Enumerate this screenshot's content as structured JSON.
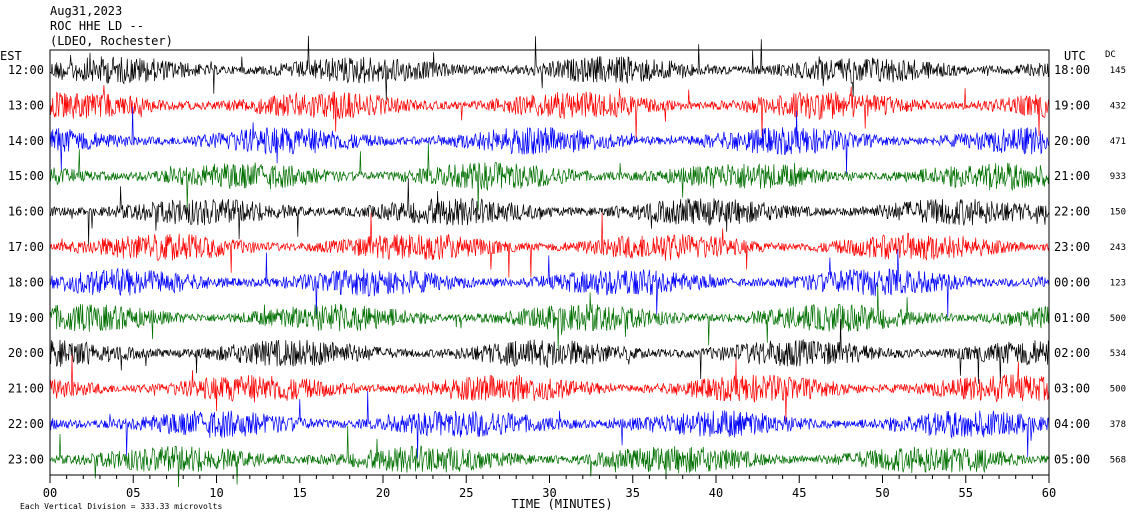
{
  "header": {
    "date": "Aug31,2023",
    "station": "ROC HHE LD --",
    "network": "(LDEO, Rochester)"
  },
  "footer": {
    "scale_note": "Each Vertical Division =  333.33 microvolts"
  },
  "chart_data": {
    "type": "line",
    "title": "",
    "xlabel": "TIME (MINUTES)",
    "left_axis_label": "EST",
    "right_axis_label": "UTC",
    "dc_label": "DC",
    "xlim": [
      0,
      60
    ],
    "x_ticks": [
      "00",
      "05",
      "10",
      "15",
      "20",
      "25",
      "30",
      "35",
      "40",
      "45",
      "50",
      "55",
      "60"
    ],
    "rows": [
      {
        "est": "12:00",
        "utc": "18:00",
        "dc": "145",
        "color": "#000000"
      },
      {
        "est": "13:00",
        "utc": "19:00",
        "dc": "432",
        "color": "#ff0000"
      },
      {
        "est": "14:00",
        "utc": "20:00",
        "dc": "471",
        "color": "#0000ff"
      },
      {
        "est": "15:00",
        "utc": "21:00",
        "dc": "933",
        "color": "#007000"
      },
      {
        "est": "16:00",
        "utc": "22:00",
        "dc": "150",
        "color": "#000000"
      },
      {
        "est": "17:00",
        "utc": "23:00",
        "dc": "243",
        "color": "#ff0000"
      },
      {
        "est": "18:00",
        "utc": "00:00",
        "dc": "123",
        "color": "#0000ff"
      },
      {
        "est": "19:00",
        "utc": "01:00",
        "dc": "500",
        "color": "#007000"
      },
      {
        "est": "20:00",
        "utc": "02:00",
        "dc": "534",
        "color": "#000000"
      },
      {
        "est": "21:00",
        "utc": "03:00",
        "dc": "500",
        "color": "#ff0000"
      },
      {
        "est": "22:00",
        "utc": "04:00",
        "dc": "378",
        "color": "#0000ff"
      },
      {
        "est": "23:00",
        "utc": "05:00",
        "dc": "568",
        "color": "#007000"
      }
    ]
  }
}
